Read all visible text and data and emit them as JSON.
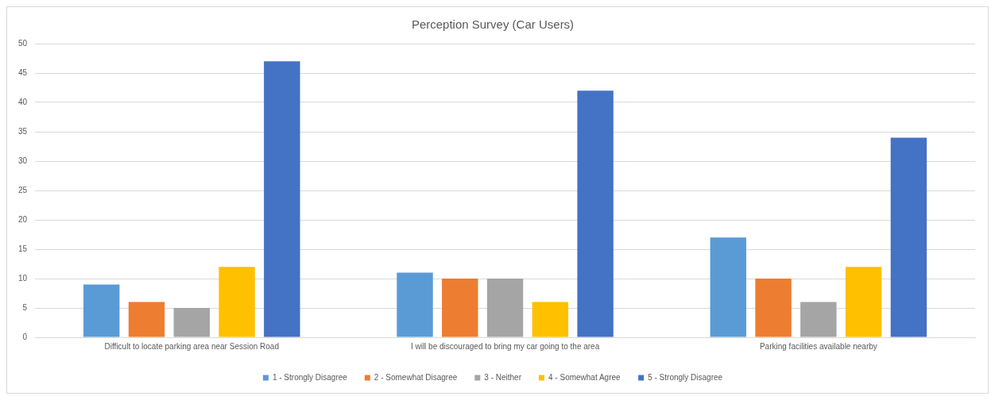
{
  "chart_data": {
    "type": "bar",
    "title": "Perception Survey (Car Users)",
    "categories": [
      "Difficult to locate parking area near Session Road",
      "I will be discouraged to bring my car going to the area",
      "Parking facilities available nearby"
    ],
    "series": [
      {
        "name": "1 - Strongly Disagree",
        "color": "#5b9bd5",
        "values": [
          9,
          11,
          17
        ]
      },
      {
        "name": "2 - Somewhat Disagree",
        "color": "#ed7d31",
        "values": [
          6,
          10,
          10
        ]
      },
      {
        "name": "3 - Neither",
        "color": "#a5a5a5",
        "values": [
          5,
          10,
          6
        ]
      },
      {
        "name": "4 - Somewhat Agree",
        "color": "#ffc000",
        "values": [
          12,
          6,
          12
        ]
      },
      {
        "name": "5 - Strongly Disagree",
        "color": "#4472c4",
        "values": [
          47,
          42,
          34
        ]
      }
    ],
    "ylim": [
      0,
      50
    ],
    "yticks": [
      0,
      5,
      10,
      15,
      20,
      25,
      30,
      35,
      40,
      45,
      50
    ],
    "grid": "y",
    "legend": "bottom"
  }
}
